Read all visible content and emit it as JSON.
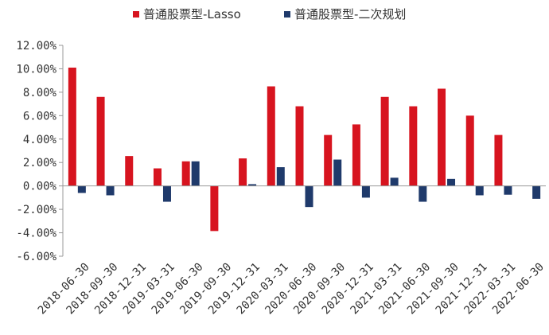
{
  "chart_data": {
    "type": "bar",
    "categories": [
      "2018-06-30",
      "2018-09-30",
      "2018-12-31",
      "2019-03-31",
      "2019-06-30",
      "2019-09-30",
      "2019-12-31",
      "2020-03-31",
      "2020-06-30",
      "2020-09-30",
      "2020-12-31",
      "2021-03-31",
      "2021-06-30",
      "2021-09-30",
      "2021-12-31",
      "2022-03-31",
      "2022-06-30"
    ],
    "series": [
      {
        "name": "普通股票型-Lasso",
        "color": "#d7141f",
        "values": [
          10.1,
          7.6,
          2.55,
          1.5,
          2.1,
          -3.85,
          2.35,
          8.5,
          6.8,
          4.35,
          5.25,
          7.6,
          6.8,
          8.3,
          6.0,
          4.35,
          0.0
        ]
      },
      {
        "name": "普通股票型-二次规划",
        "color": "#1f3a6b",
        "values": [
          -0.6,
          -0.8,
          0.0,
          -1.35,
          2.1,
          0.0,
          0.15,
          1.6,
          -1.8,
          2.25,
          -1.0,
          0.7,
          -1.35,
          0.6,
          -0.8,
          -0.75,
          -1.1
        ]
      }
    ],
    "ylim": [
      -6,
      12
    ],
    "yticks": [
      "12.00%",
      "10.00%",
      "8.00%",
      "6.00%",
      "4.00%",
      "2.00%",
      "0.00%",
      "-2.00%",
      "-4.00%",
      "-6.00%"
    ],
    "legend_position": "top-center",
    "grid": false
  }
}
